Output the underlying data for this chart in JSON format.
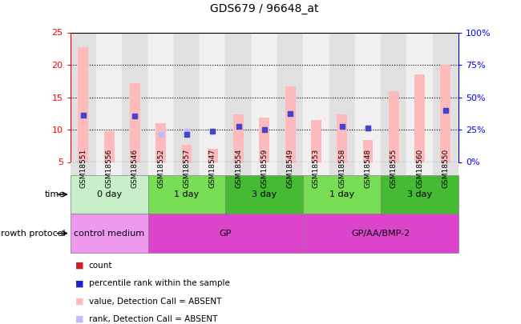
{
  "title": "GDS679 / 96648_at",
  "samples": [
    "GSM18551",
    "GSM18556",
    "GSM18546",
    "GSM18552",
    "GSM18557",
    "GSM18547",
    "GSM18554",
    "GSM18559",
    "GSM18549",
    "GSM18553",
    "GSM18558",
    "GSM18548",
    "GSM18555",
    "GSM18560",
    "GSM18550"
  ],
  "bar_values": [
    22.7,
    9.8,
    17.1,
    11.0,
    7.6,
    7.0,
    12.3,
    11.8,
    16.7,
    11.5,
    12.4,
    8.4,
    15.9,
    18.5,
    20.0
  ],
  "rank_values": [
    12.2,
    null,
    12.1,
    null,
    9.3,
    9.8,
    10.5,
    10.0,
    12.5,
    null,
    10.5,
    10.3,
    null,
    null,
    13.0
  ],
  "absent_rank_values": [
    12.2,
    null,
    12.1,
    9.3,
    9.8,
    null,
    10.5,
    10.0,
    12.5,
    null,
    10.5,
    10.3,
    null,
    null,
    13.0
  ],
  "left_yticks": [
    5,
    10,
    15,
    20,
    25
  ],
  "right_yticks": [
    0,
    25,
    50,
    75,
    100
  ],
  "ylim_left": [
    5,
    25
  ],
  "ylim_right": [
    0,
    100
  ],
  "time_groups": [
    {
      "label": "0 day",
      "start": 0,
      "end": 3,
      "color": "#c8f0c8"
    },
    {
      "label": "1 day",
      "start": 3,
      "end": 6,
      "color": "#77dd55"
    },
    {
      "label": "3 day",
      "start": 6,
      "end": 9,
      "color": "#44bb33"
    },
    {
      "label": "1 day",
      "start": 9,
      "end": 12,
      "color": "#77dd55"
    },
    {
      "label": "3 day",
      "start": 12,
      "end": 15,
      "color": "#44bb33"
    }
  ],
  "protocol_groups": [
    {
      "label": "control medium",
      "start": 0,
      "end": 3,
      "color": "#ee99ee"
    },
    {
      "label": "GP",
      "start": 3,
      "end": 9,
      "color": "#dd55dd"
    },
    {
      "label": "GP/AA/BMP-2",
      "start": 9,
      "end": 15,
      "color": "#dd55dd"
    }
  ],
  "absent_bar_color": "#ffbbbb",
  "absent_rank_color": "#bbbbff",
  "rank_dot_color": "#4444cc",
  "col_bg_even": "#e0e0e0",
  "col_bg_odd": "#f0f0f0",
  "gridline_color": "black",
  "legend_items": [
    {
      "label": "count",
      "color": "#cc2222"
    },
    {
      "label": "percentile rank within the sample",
      "color": "#2222cc"
    },
    {
      "label": "value, Detection Call = ABSENT",
      "color": "#ffbbbb"
    },
    {
      "label": "rank, Detection Call = ABSENT",
      "color": "#bbbbff"
    }
  ],
  "time_label": "time",
  "protocol_label": "growth protocol"
}
